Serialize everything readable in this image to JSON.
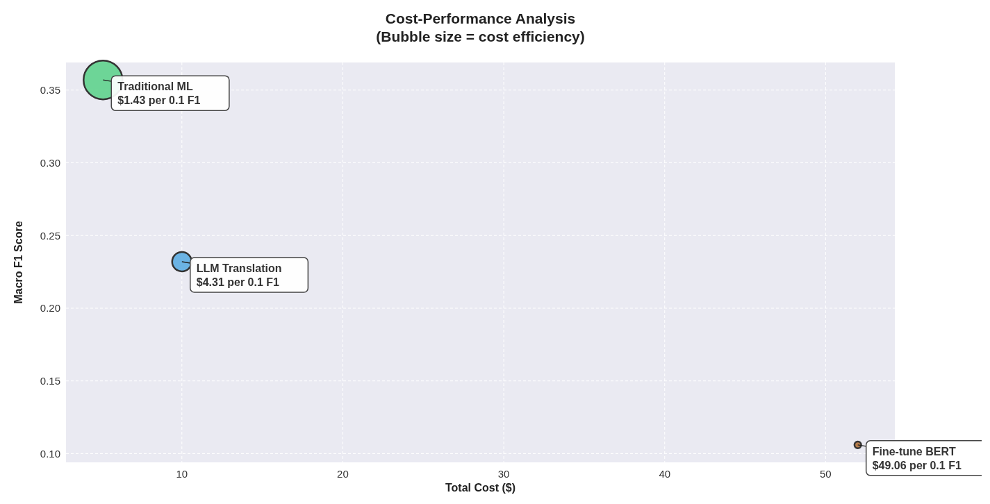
{
  "chart_data": {
    "type": "bubble",
    "title": "Cost-Performance Analysis\n(Bubble size = cost efficiency)",
    "xlabel": "Total Cost ($)",
    "ylabel": "Macro F1 Score",
    "x": [
      5.1,
      10,
      52.0
    ],
    "values": [
      0.357,
      0.232,
      0.106
    ],
    "sizes": [
      1,
      0.25,
      0.03
    ],
    "colors": [
      "#5fd38d",
      "#5dade2",
      "#b0713a"
    ],
    "xlim": [
      2.8,
      54.3
    ],
    "xticks": [
      10,
      20,
      30,
      40,
      50
    ],
    "ylim": [
      0.094,
      0.369
    ],
    "yticks": [
      {
        "value": 0.1,
        "label": "0.10"
      },
      {
        "value": 0.15,
        "label": "0.15"
      },
      {
        "value": 0.2,
        "label": "0.20"
      },
      {
        "value": 0.25,
        "label": "0.25"
      },
      {
        "value": 0.3,
        "label": "0.30"
      },
      {
        "value": 0.35,
        "label": "0.35"
      }
    ],
    "grid": true,
    "annotations": [
      {
        "text": "Traditional ML\n$1.43 per 0.1 F1",
        "x": 5.1,
        "y": 0.357
      },
      {
        "text": "LLM Translation\n$4.31 per 0.1 F1",
        "x": 10,
        "y": 0.232
      },
      {
        "text": "Fine-tune BERT\n$49.06 per 0.1 F1",
        "x": 52.0,
        "y": 0.106
      }
    ]
  }
}
